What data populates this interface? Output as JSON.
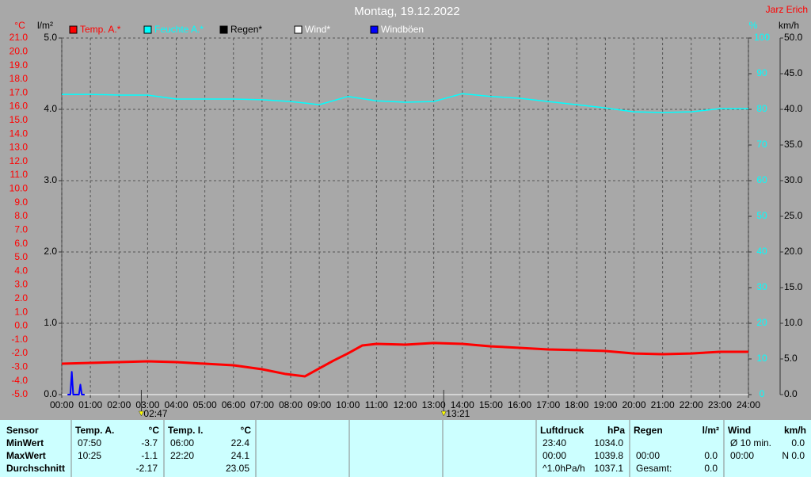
{
  "chart_data": {
    "type": "line",
    "title": "Montag, 19.12.2022",
    "author": "Jarz Erich",
    "ylabel": "°C",
    "y3label": "l/m²",
    "y2label": "%",
    "y4label": "km/h",
    "xlim": [
      0,
      24
    ],
    "xticks": [
      {
        "value": 0,
        "label": "00:00"
      },
      {
        "value": 1,
        "label": "01:00"
      },
      {
        "value": 2,
        "label": "02:00"
      },
      {
        "value": 3,
        "label": "03:00"
      },
      {
        "value": 4,
        "label": "04:00"
      },
      {
        "value": 5,
        "label": "05:00"
      },
      {
        "value": 6,
        "label": "06:00"
      },
      {
        "value": 7,
        "label": "07:00"
      },
      {
        "value": 8,
        "label": "08:00"
      },
      {
        "value": 9,
        "label": "09:00"
      },
      {
        "value": 10,
        "label": "10:00"
      },
      {
        "value": 11,
        "label": "11:00"
      },
      {
        "value": 12,
        "label": "12:00"
      },
      {
        "value": 13,
        "label": "13:00"
      },
      {
        "value": 14,
        "label": "14:00"
      },
      {
        "value": 15,
        "label": "15:00"
      },
      {
        "value": 16,
        "label": "16:00"
      },
      {
        "value": 17,
        "label": "17:00"
      },
      {
        "value": 18,
        "label": "18:00"
      },
      {
        "value": 19,
        "label": "19:00"
      },
      {
        "value": 20,
        "label": "20:00"
      },
      {
        "value": 21,
        "label": "21:00"
      },
      {
        "value": 22,
        "label": "22:00"
      },
      {
        "value": 23,
        "label": "23:00"
      },
      {
        "value": 24,
        "label": "24:00"
      }
    ],
    "ylim": [
      -5,
      21
    ],
    "yticks": [
      {
        "value": -5,
        "label": "-5.0"
      },
      {
        "value": -4,
        "label": "-4.0"
      },
      {
        "value": -3,
        "label": "-3.0"
      },
      {
        "value": -2,
        "label": "-2.0"
      },
      {
        "value": -1,
        "label": "-1.0"
      },
      {
        "value": 0,
        "label": "0.0"
      },
      {
        "value": 1,
        "label": "1.0"
      },
      {
        "value": 2,
        "label": "2.0"
      },
      {
        "value": 3,
        "label": "3.0"
      },
      {
        "value": 4,
        "label": "4.0"
      },
      {
        "value": 5,
        "label": "5.0"
      },
      {
        "value": 6,
        "label": "6.0"
      },
      {
        "value": 7,
        "label": "7.0"
      },
      {
        "value": 8,
        "label": "8.0"
      },
      {
        "value": 9,
        "label": "9.0"
      },
      {
        "value": 10,
        "label": "10.0"
      },
      {
        "value": 11,
        "label": "11.0"
      },
      {
        "value": 12,
        "label": "12.0"
      },
      {
        "value": 13,
        "label": "13.0"
      },
      {
        "value": 14,
        "label": "14.0"
      },
      {
        "value": 15,
        "label": "15.0"
      },
      {
        "value": 16,
        "label": "16.0"
      },
      {
        "value": 17,
        "label": "17.0"
      },
      {
        "value": 18,
        "label": "18.0"
      },
      {
        "value": 19,
        "label": "19.0"
      },
      {
        "value": 20,
        "label": "20.0"
      },
      {
        "value": 21,
        "label": "21.0"
      }
    ],
    "y3lim": [
      0,
      5
    ],
    "y3ticks": [
      {
        "value": 0,
        "label": "0.0"
      },
      {
        "value": 1,
        "label": "1.0"
      },
      {
        "value": 2,
        "label": "2.0"
      },
      {
        "value": 3,
        "label": "3.0"
      },
      {
        "value": 4,
        "label": "4.0"
      },
      {
        "value": 5,
        "label": "5.0"
      }
    ],
    "y2lim": [
      0,
      100
    ],
    "y2ticks": [
      0,
      10,
      20,
      30,
      40,
      50,
      60,
      70,
      80,
      90,
      100
    ],
    "y4lim": [
      0,
      50
    ],
    "y4ticks": [
      {
        "value": 0,
        "label": "0.0"
      },
      {
        "value": 5,
        "label": "5.0"
      },
      {
        "value": 10,
        "label": "10.0"
      },
      {
        "value": 15,
        "label": "15.0"
      },
      {
        "value": 20,
        "label": "20.0"
      },
      {
        "value": 25,
        "label": "25.0"
      },
      {
        "value": 30,
        "label": "30.0"
      },
      {
        "value": 35,
        "label": "35.0"
      },
      {
        "value": 40,
        "label": "40.0"
      },
      {
        "value": 45,
        "label": "45.0"
      },
      {
        "value": 50,
        "label": "50.0"
      }
    ],
    "grid": true,
    "series": [
      {
        "name": "Temp. A.*",
        "color": "#ff0000",
        "axis": "y",
        "x": [
          0,
          1,
          2,
          3,
          4,
          5,
          6,
          7,
          7.83,
          8.5,
          9,
          9.5,
          10,
          10.5,
          11,
          12,
          13,
          14,
          15,
          16,
          17,
          18,
          19,
          20,
          21,
          22,
          23,
          24
        ],
        "values": [
          -2.75,
          -2.69,
          -2.63,
          -2.57,
          -2.63,
          -2.75,
          -2.86,
          -3.15,
          -3.5,
          -3.67,
          -3.09,
          -2.52,
          -2.0,
          -1.42,
          -1.3,
          -1.36,
          -1.24,
          -1.3,
          -1.48,
          -1.59,
          -1.71,
          -1.76,
          -1.82,
          -2.0,
          -2.05,
          -2.0,
          -1.88,
          -1.88
        ]
      },
      {
        "name": "Feuchte A.*",
        "color": "#00ffff",
        "axis": "y2",
        "x": [
          0,
          1,
          2,
          3,
          4,
          5,
          6,
          7,
          8,
          9,
          10,
          11,
          12,
          13,
          14,
          15,
          16,
          17,
          18,
          19,
          20,
          21,
          22,
          23,
          24
        ],
        "values": [
          84.2,
          84.2,
          84.0,
          84.0,
          82.9,
          82.9,
          82.9,
          82.7,
          82.2,
          81.3,
          83.6,
          82.4,
          82.0,
          82.2,
          84.4,
          83.6,
          83.1,
          82.2,
          81.3,
          80.4,
          79.3,
          79.1,
          79.3,
          80.2,
          80.2
        ]
      },
      {
        "name": "Regen*",
        "color": "#000000",
        "axis": "y3",
        "x": [
          0,
          24
        ],
        "values": [
          0,
          0
        ]
      },
      {
        "name": "Wind*",
        "color": "#ffffff",
        "axis": "y4",
        "x": [
          0,
          24
        ],
        "values": [
          0,
          0
        ]
      },
      {
        "name": "Windböen",
        "color": "#0000ff",
        "axis": "y4",
        "x": [
          0.2,
          0.3,
          0.35,
          0.4,
          0.5,
          0.6,
          0.65,
          0.7,
          0.8
        ],
        "values": [
          0,
          0,
          3.2,
          0,
          0,
          0,
          1.4,
          0,
          0
        ]
      }
    ],
    "markers": [
      {
        "x": 2.78,
        "label": "02:47"
      },
      {
        "x": 13.35,
        "label": "13:21"
      }
    ]
  },
  "table": {
    "sensor": {
      "header": "Sensor",
      "rows": [
        "MinWert",
        "MaxWert",
        "Durchschnitt"
      ]
    },
    "groups": [
      {
        "header": "Temp. A.",
        "unit": "°C",
        "rows": [
          [
            "07:50",
            "-3.7"
          ],
          [
            "10:25",
            "-1.1"
          ],
          [
            null,
            "-2.17"
          ]
        ]
      },
      {
        "header": "Temp. I.",
        "unit": "°C",
        "rows": [
          [
            "06:00",
            "22.4"
          ],
          [
            "22:20",
            "24.1"
          ],
          [
            null,
            "23.05"
          ]
        ]
      },
      {
        "header": "Luftdruck",
        "unit": "hPa",
        "rows": [
          [
            "23:40",
            "1034.0"
          ],
          [
            "00:00",
            "1039.8"
          ],
          [
            "^1.0hPa/h",
            "1037.1"
          ]
        ]
      },
      {
        "header": "Regen",
        "unit": "l/m²",
        "rows": [
          [
            null,
            null
          ],
          [
            "00:00",
            "0.0"
          ],
          [
            "Gesamt:",
            "0.0"
          ]
        ]
      },
      {
        "header": "Wind",
        "unit": "km/h",
        "rows": [
          [
            "Ø 10 min.",
            "0.0"
          ],
          [
            "00:00",
            "N 0.0"
          ],
          [
            null,
            null
          ]
        ]
      }
    ]
  }
}
